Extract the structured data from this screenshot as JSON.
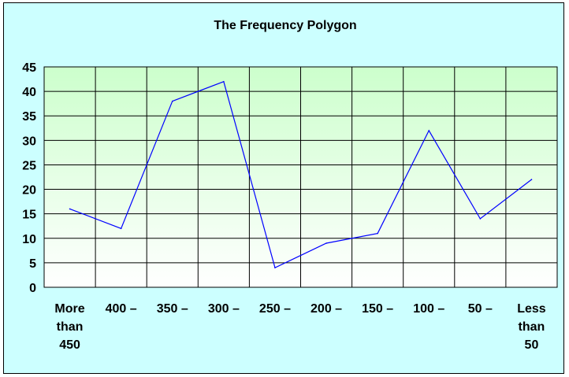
{
  "chart_data": {
    "type": "line",
    "title": "The Frequency Polygon",
    "xlabel": "",
    "ylabel": "",
    "categories": [
      [
        "More",
        "than",
        "450"
      ],
      [
        "400 –"
      ],
      [
        "350 –"
      ],
      [
        "300 –"
      ],
      [
        "250 –"
      ],
      [
        "200 –"
      ],
      [
        "150 –"
      ],
      [
        "100 –"
      ],
      [
        "50 –"
      ],
      [
        "Less",
        "than",
        "50"
      ]
    ],
    "series": [
      {
        "values": [
          16,
          12,
          38,
          42,
          4,
          9,
          11,
          32,
          14,
          22
        ]
      }
    ],
    "ylim": [
      0,
      45
    ],
    "yticks": [
      0,
      5,
      10,
      15,
      20,
      25,
      30,
      35,
      40,
      45
    ],
    "grid": true,
    "colors": {
      "frame_background": "#ccffff",
      "plot_gradient_top": "#ccffcc",
      "plot_gradient_bottom": "#ffffff",
      "line": "#0000ff",
      "grid": "#000000"
    }
  }
}
